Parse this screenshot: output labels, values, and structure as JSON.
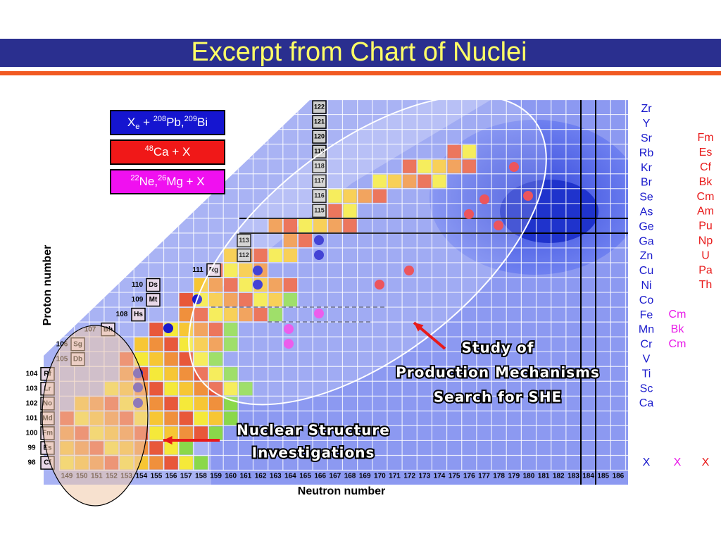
{
  "title": "Excerpt from Chart of Nuclei",
  "legend": [
    {
      "parts": [
        {
          "text": "X"
        },
        {
          "text": "e",
          "style": "sub"
        },
        {
          "text": " + "
        },
        {
          "text": "208",
          "style": "sup"
        },
        {
          "text": "Pb,"
        },
        {
          "text": "209",
          "style": "sup"
        },
        {
          "text": "Bi"
        }
      ]
    },
    {
      "parts": [
        {
          "text": "48",
          "style": "sup"
        },
        {
          "text": "Ca + X"
        }
      ]
    },
    {
      "parts": [
        {
          "text": "22",
          "style": "sup"
        },
        {
          "text": "Ne,"
        },
        {
          "text": "26",
          "style": "sup"
        },
        {
          "text": "Mg + X"
        }
      ]
    }
  ],
  "axes": {
    "y_label": "Proton number",
    "x_label": "Neutron number"
  },
  "neutron_numbers": [
    149,
    150,
    151,
    152,
    153,
    154,
    155,
    156,
    157,
    158,
    159,
    160,
    161,
    162,
    163,
    164,
    165,
    166,
    167,
    168,
    169,
    170,
    171,
    172,
    173,
    174,
    175,
    176,
    177,
    178,
    179,
    180,
    181,
    182,
    183,
    184,
    185,
    186
  ],
  "elements": [
    {
      "z": 98,
      "symbol": "Cf"
    },
    {
      "z": 99,
      "symbol": "Es"
    },
    {
      "z": 100,
      "symbol": "Fm"
    },
    {
      "z": 101,
      "symbol": "Md"
    },
    {
      "z": 102,
      "symbol": "No"
    },
    {
      "z": 103,
      "symbol": "Lr"
    },
    {
      "z": 104,
      "symbol": "Rf"
    },
    {
      "z": 105,
      "symbol": "Db"
    },
    {
      "z": 106,
      "symbol": "Sg"
    },
    {
      "z": 107,
      "symbol": "Bh"
    },
    {
      "z": 108,
      "symbol": "Hs"
    },
    {
      "z": 109,
      "symbol": "Mt"
    },
    {
      "z": 110,
      "symbol": "Ds"
    },
    {
      "z": 111,
      "symbol": "Rg"
    },
    {
      "z": 112
    },
    {
      "z": 113
    },
    {
      "z": 115
    },
    {
      "z": 116
    },
    {
      "z": 117
    },
    {
      "z": 118
    },
    {
      "z": 119
    },
    {
      "z": 120
    },
    {
      "z": 121
    },
    {
      "z": 122
    }
  ],
  "targets": {
    "blue": [
      "Zr",
      "Y",
      "Sr",
      "Rb",
      "Kr",
      "Br",
      "Se",
      "As",
      "Ge",
      "Ga",
      "Zn",
      "Cu",
      "Ni",
      "Co",
      "Fe",
      "Mn",
      "Cr",
      "V",
      "Ti",
      "Sc",
      "Ca"
    ],
    "red": [
      "Fm",
      "Es",
      "Cf",
      "Bk",
      "Cm",
      "Am",
      "Pu",
      "Np",
      "U",
      "Pa",
      "Th"
    ],
    "magenta": [
      "Cm",
      "Bk",
      "Cm"
    ]
  },
  "x_marks": [
    "X",
    "X",
    "X"
  ],
  "annotations": {
    "production": [
      "Study of",
      "Production Mechanisms",
      "Search for SHE"
    ],
    "structure": [
      "Nuclear Structure",
      "Investigations"
    ]
  }
}
